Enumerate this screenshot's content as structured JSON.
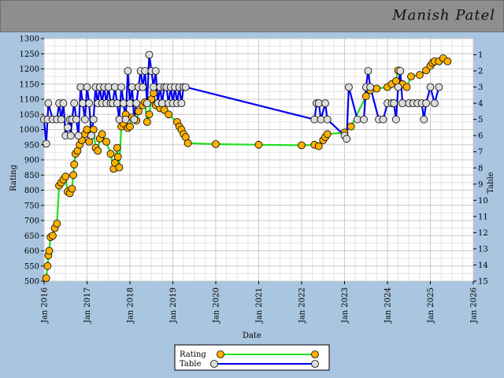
{
  "page": {
    "title": "Manish Patel"
  },
  "chart_data": {
    "type": "line",
    "xlabel": "Date",
    "ylabel_left": "Rating",
    "ylabel_right": "Table",
    "xlim": [
      2016,
      2026
    ],
    "ylim_left": [
      500,
      1300
    ],
    "ylim_right": [
      15,
      0
    ],
    "x_ticks": [
      "Jan 2016",
      "Jan 2017",
      "Jan 2018",
      "Jan 2019",
      "Jan 2020",
      "Jan 2021",
      "Jan 2022",
      "Jan 2023",
      "Jan 2024",
      "Jan 2025",
      "Jan 2026"
    ],
    "y_ticks_left": [
      500,
      550,
      600,
      650,
      700,
      750,
      800,
      850,
      900,
      950,
      1000,
      1050,
      1100,
      1150,
      1200,
      1250,
      1300
    ],
    "y_ticks_right": [
      1,
      2,
      3,
      4,
      5,
      6,
      7,
      8,
      9,
      10,
      11,
      12,
      13,
      14,
      15
    ],
    "grid": true,
    "legend_position": "bottom-center",
    "series": [
      {
        "name": "Rating",
        "color": "#22dd22",
        "marker_color": "#ffb000",
        "axis": "left",
        "points": [
          [
            2016.05,
            510
          ],
          [
            2016.08,
            550
          ],
          [
            2016.1,
            585
          ],
          [
            2016.12,
            600
          ],
          [
            2016.15,
            645
          ],
          [
            2016.2,
            650
          ],
          [
            2016.25,
            675
          ],
          [
            2016.3,
            690
          ],
          [
            2016.35,
            815
          ],
          [
            2016.4,
            825
          ],
          [
            2016.45,
            835
          ],
          [
            2016.5,
            845
          ],
          [
            2016.55,
            795
          ],
          [
            2016.6,
            790
          ],
          [
            2016.65,
            805
          ],
          [
            2016.68,
            850
          ],
          [
            2016.7,
            885
          ],
          [
            2016.73,
            920
          ],
          [
            2016.78,
            930
          ],
          [
            2016.83,
            950
          ],
          [
            2016.88,
            965
          ],
          [
            2016.95,
            985
          ],
          [
            2017.0,
            1000
          ],
          [
            2017.05,
            960
          ],
          [
            2017.1,
            980
          ],
          [
            2017.15,
            1000
          ],
          [
            2017.2,
            940
          ],
          [
            2017.25,
            930
          ],
          [
            2017.3,
            970
          ],
          [
            2017.35,
            985
          ],
          [
            2017.45,
            960
          ],
          [
            2017.55,
            920
          ],
          [
            2017.62,
            870
          ],
          [
            2017.65,
            890
          ],
          [
            2017.7,
            940
          ],
          [
            2017.72,
            910
          ],
          [
            2017.75,
            875
          ],
          [
            2017.8,
            1010
          ],
          [
            2017.85,
            1020
          ],
          [
            2017.9,
            1050
          ],
          [
            2017.95,
            1005
          ],
          [
            2018.0,
            1010
          ],
          [
            2018.05,
            1040
          ],
          [
            2018.15,
            1030
          ],
          [
            2018.2,
            1060
          ],
          [
            2018.3,
            1080
          ],
          [
            2018.35,
            1090
          ],
          [
            2018.4,
            1025
          ],
          [
            2018.45,
            1050
          ],
          [
            2018.5,
            1100
          ],
          [
            2018.55,
            1120
          ],
          [
            2018.6,
            1080
          ],
          [
            2018.7,
            1070
          ],
          [
            2018.8,
            1065
          ],
          [
            2018.9,
            1050
          ],
          [
            2019.1,
            1025
          ],
          [
            2019.15,
            1010
          ],
          [
            2019.2,
            1000
          ],
          [
            2019.25,
            985
          ],
          [
            2019.3,
            975
          ],
          [
            2019.35,
            955
          ],
          [
            2020.0,
            952
          ],
          [
            2021.0,
            950
          ],
          [
            2022.0,
            948
          ],
          [
            2022.3,
            950
          ],
          [
            2022.4,
            945
          ],
          [
            2022.5,
            965
          ],
          [
            2022.55,
            975
          ],
          [
            2022.6,
            985
          ],
          [
            2023.0,
            990
          ],
          [
            2023.15,
            1010
          ],
          [
            2023.5,
            1110
          ],
          [
            2023.6,
            1130
          ],
          [
            2023.75,
            1135
          ],
          [
            2024.0,
            1140
          ],
          [
            2024.1,
            1150
          ],
          [
            2024.2,
            1160
          ],
          [
            2024.25,
            1195
          ],
          [
            2024.35,
            1150
          ],
          [
            2024.45,
            1140
          ],
          [
            2024.55,
            1175
          ],
          [
            2024.75,
            1180
          ],
          [
            2024.9,
            1195
          ],
          [
            2025.0,
            1210
          ],
          [
            2025.05,
            1220
          ],
          [
            2025.1,
            1225
          ],
          [
            2025.2,
            1225
          ],
          [
            2025.3,
            1235
          ],
          [
            2025.4,
            1225
          ]
        ]
      },
      {
        "name": "Table",
        "color": "#0000ee",
        "marker_color": "#dddddd",
        "axis": "right",
        "points": [
          [
            2016.0,
            5
          ],
          [
            2016.05,
            6.5
          ],
          [
            2016.08,
            5
          ],
          [
            2016.1,
            4
          ],
          [
            2016.2,
            5
          ],
          [
            2016.3,
            5
          ],
          [
            2016.35,
            4
          ],
          [
            2016.4,
            5
          ],
          [
            2016.45,
            4
          ],
          [
            2016.5,
            6
          ],
          [
            2016.55,
            5.5
          ],
          [
            2016.6,
            5
          ],
          [
            2016.62,
            6
          ],
          [
            2016.65,
            5
          ],
          [
            2016.7,
            4
          ],
          [
            2016.75,
            5
          ],
          [
            2016.8,
            6
          ],
          [
            2016.85,
            3
          ],
          [
            2016.9,
            4
          ],
          [
            2016.95,
            5
          ],
          [
            2017.0,
            3
          ],
          [
            2017.05,
            4
          ],
          [
            2017.1,
            6
          ],
          [
            2017.15,
            5
          ],
          [
            2017.2,
            3
          ],
          [
            2017.25,
            4
          ],
          [
            2017.3,
            3
          ],
          [
            2017.35,
            4
          ],
          [
            2017.4,
            3
          ],
          [
            2017.45,
            4
          ],
          [
            2017.5,
            3
          ],
          [
            2017.55,
            4
          ],
          [
            2017.6,
            4
          ],
          [
            2017.65,
            3
          ],
          [
            2017.7,
            4
          ],
          [
            2017.75,
            5
          ],
          [
            2017.8,
            3
          ],
          [
            2017.85,
            4
          ],
          [
            2017.9,
            5
          ],
          [
            2017.95,
            2
          ],
          [
            2018.0,
            4
          ],
          [
            2018.05,
            3
          ],
          [
            2018.1,
            5
          ],
          [
            2018.15,
            4
          ],
          [
            2018.2,
            3
          ],
          [
            2018.25,
            2
          ],
          [
            2018.3,
            3
          ],
          [
            2018.35,
            2
          ],
          [
            2018.4,
            4
          ],
          [
            2018.45,
            1
          ],
          [
            2018.5,
            2
          ],
          [
            2018.55,
            3
          ],
          [
            2018.6,
            2
          ],
          [
            2018.65,
            4
          ],
          [
            2018.7,
            3
          ],
          [
            2018.75,
            4
          ],
          [
            2018.8,
            3
          ],
          [
            2018.85,
            3
          ],
          [
            2018.9,
            4
          ],
          [
            2018.95,
            3
          ],
          [
            2019.0,
            4
          ],
          [
            2019.05,
            3
          ],
          [
            2019.1,
            4
          ],
          [
            2019.15,
            3
          ],
          [
            2019.2,
            4
          ],
          [
            2019.25,
            3
          ],
          [
            2019.3,
            3
          ],
          [
            2022.3,
            5
          ],
          [
            2022.35,
            4
          ],
          [
            2022.4,
            4
          ],
          [
            2022.45,
            5
          ],
          [
            2022.55,
            4
          ],
          [
            2022.6,
            5
          ],
          [
            2023.0,
            6
          ],
          [
            2023.05,
            6.2
          ],
          [
            2023.1,
            3
          ],
          [
            2023.3,
            5
          ],
          [
            2023.45,
            5
          ],
          [
            2023.5,
            3
          ],
          [
            2023.55,
            2
          ],
          [
            2023.6,
            3
          ],
          [
            2023.8,
            5
          ],
          [
            2023.9,
            5
          ],
          [
            2024.0,
            4
          ],
          [
            2024.1,
            4
          ],
          [
            2024.15,
            4
          ],
          [
            2024.2,
            5
          ],
          [
            2024.25,
            3
          ],
          [
            2024.3,
            2
          ],
          [
            2024.35,
            4
          ],
          [
            2024.5,
            4
          ],
          [
            2024.6,
            4
          ],
          [
            2024.7,
            4
          ],
          [
            2024.8,
            4
          ],
          [
            2024.85,
            5
          ],
          [
            2024.9,
            4
          ],
          [
            2025.0,
            3
          ],
          [
            2025.1,
            4
          ],
          [
            2025.2,
            3
          ]
        ]
      }
    ]
  }
}
